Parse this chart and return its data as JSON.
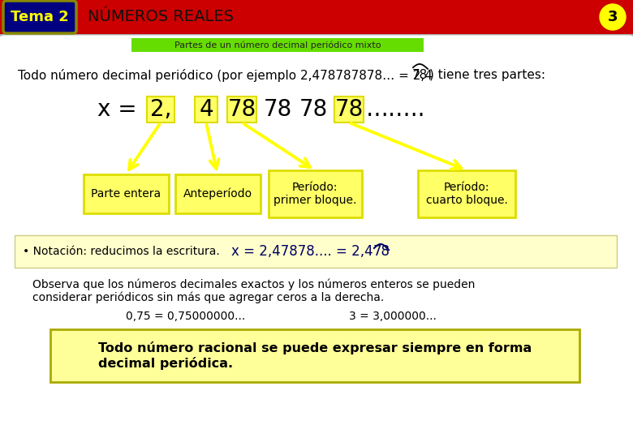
{
  "title_tema": "Tema 2",
  "title_main": "NÚMEROS REALES",
  "page_num": "3",
  "subtitle": "Partes de un número decimal periódico mixto",
  "footer_text": "Todo número racional se puede expresar siempre en forma\ndecimal periódica.",
  "bg_color": "#f0f0f0",
  "header_bg": "#cc0000",
  "tema_bg": "#000080",
  "tema_text": "#ffff00",
  "page_circle": "#ffff00",
  "subtitle_bg": "#66dd00",
  "yellow_highlight": "#ffff66",
  "yellow_border": "#dddd00",
  "arrow_color": "#ffff00",
  "notation_bg": "#ffffcc",
  "footer_bg": "#ffff99",
  "footer_border": "#aaaa00"
}
